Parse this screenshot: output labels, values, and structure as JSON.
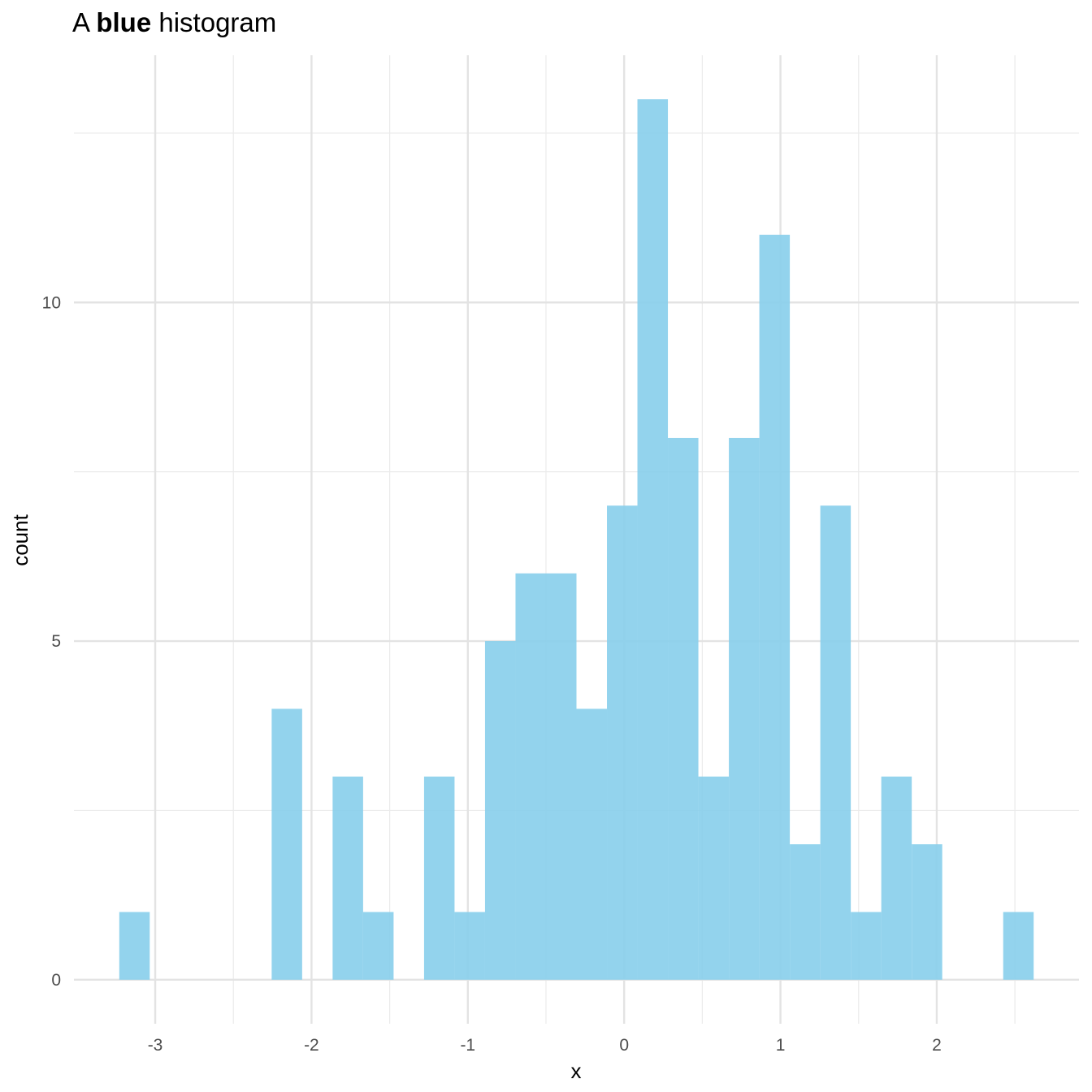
{
  "chart_data": {
    "type": "histogram",
    "title": {
      "prefix": "A ",
      "bold": "blue",
      "suffix": " histogram"
    },
    "xlabel": "x",
    "ylabel": "count",
    "bar_color": "#87CEEB",
    "bar_opacity": 0.9,
    "bin_width": 0.195,
    "bins": [
      {
        "x0": -3.23,
        "x1": -3.035,
        "count": 1
      },
      {
        "x0": -3.035,
        "x1": -2.84,
        "count": 0
      },
      {
        "x0": -2.84,
        "x1": -2.645,
        "count": 0
      },
      {
        "x0": -2.645,
        "x1": -2.45,
        "count": 0
      },
      {
        "x0": -2.45,
        "x1": -2.255,
        "count": 0
      },
      {
        "x0": -2.255,
        "x1": -2.06,
        "count": 4
      },
      {
        "x0": -2.06,
        "x1": -1.865,
        "count": 0
      },
      {
        "x0": -1.865,
        "x1": -1.67,
        "count": 3
      },
      {
        "x0": -1.67,
        "x1": -1.475,
        "count": 1
      },
      {
        "x0": -1.475,
        "x1": -1.28,
        "count": 0
      },
      {
        "x0": -1.28,
        "x1": -1.085,
        "count": 3
      },
      {
        "x0": -1.085,
        "x1": -0.89,
        "count": 1
      },
      {
        "x0": -0.89,
        "x1": -0.695,
        "count": 5
      },
      {
        "x0": -0.695,
        "x1": -0.5,
        "count": 6
      },
      {
        "x0": -0.5,
        "x1": -0.305,
        "count": 6
      },
      {
        "x0": -0.305,
        "x1": -0.11,
        "count": 4
      },
      {
        "x0": -0.11,
        "x1": 0.085,
        "count": 7
      },
      {
        "x0": 0.085,
        "x1": 0.28,
        "count": 13
      },
      {
        "x0": 0.28,
        "x1": 0.475,
        "count": 8
      },
      {
        "x0": 0.475,
        "x1": 0.67,
        "count": 3
      },
      {
        "x0": 0.67,
        "x1": 0.865,
        "count": 8
      },
      {
        "x0": 0.865,
        "x1": 1.06,
        "count": 11
      },
      {
        "x0": 1.06,
        "x1": 1.255,
        "count": 2
      },
      {
        "x0": 1.255,
        "x1": 1.45,
        "count": 7
      },
      {
        "x0": 1.45,
        "x1": 1.645,
        "count": 1
      },
      {
        "x0": 1.645,
        "x1": 1.84,
        "count": 3
      },
      {
        "x0": 1.84,
        "x1": 2.035,
        "count": 2
      },
      {
        "x0": 2.035,
        "x1": 2.23,
        "count": 0
      },
      {
        "x0": 2.23,
        "x1": 2.425,
        "count": 0
      },
      {
        "x0": 2.425,
        "x1": 2.62,
        "count": 1
      }
    ],
    "xlim": [
      -3.52,
      2.91
    ],
    "ylim": [
      -0.65,
      13.65
    ],
    "x_ticks": [
      -3,
      -2,
      -1,
      0,
      1,
      2
    ],
    "x_tick_labels": [
      "-3",
      "-2",
      "-1",
      "0",
      "1",
      "2"
    ],
    "x_minor_ticks": [
      -2.5,
      -1.5,
      -0.5,
      0.5,
      1.5,
      2.5
    ],
    "y_ticks": [
      0,
      5,
      10
    ],
    "y_tick_labels": [
      "0",
      "5",
      "10"
    ],
    "y_minor_ticks": [
      2.5,
      7.5,
      12.5
    ],
    "grid": true,
    "legend": "none",
    "theme": "minimal"
  }
}
